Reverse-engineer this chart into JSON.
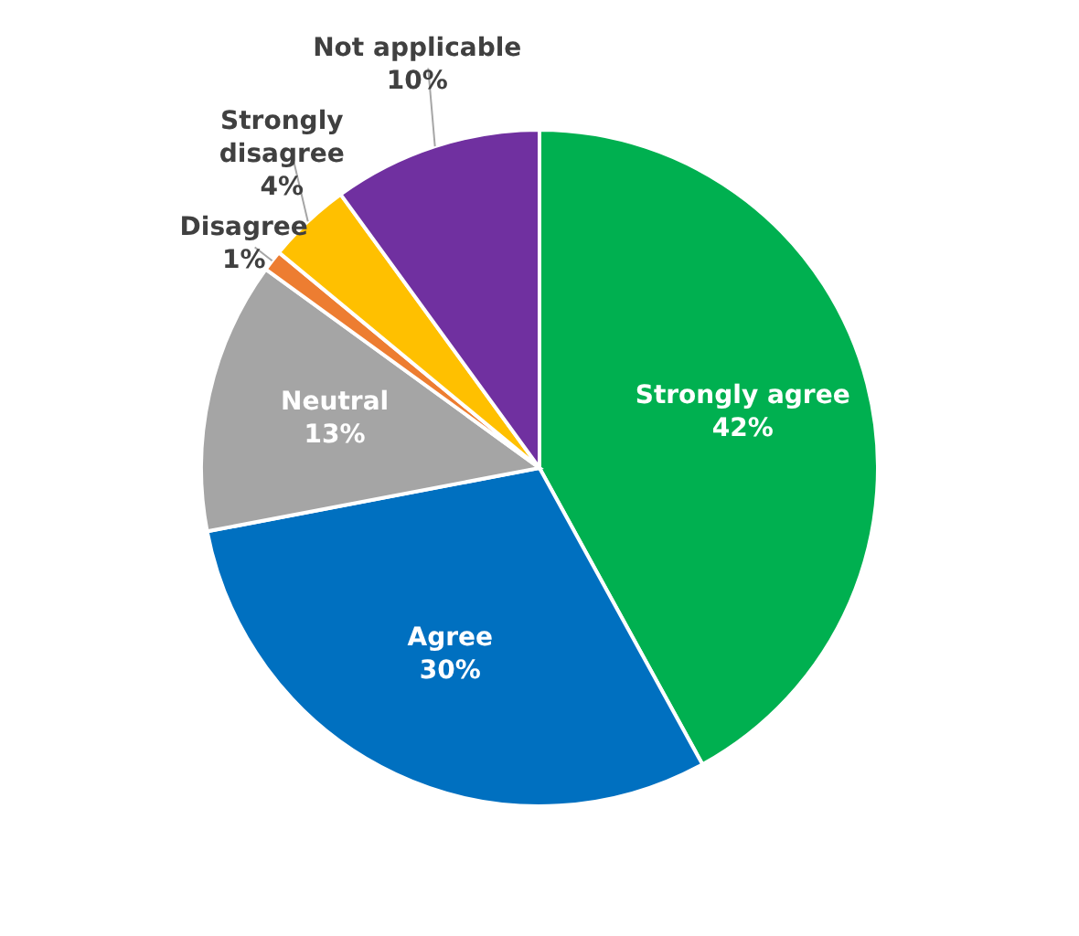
{
  "chart_data": {
    "type": "pie",
    "categories": [
      "Strongly agree",
      "Agree",
      "Neutral",
      "Disagree",
      "Strongly disagree",
      "Not applicable"
    ],
    "values": [
      42,
      30,
      13,
      1,
      4,
      10
    ],
    "value_labels": [
      "42%",
      "30%",
      "13%",
      "1%",
      "4%",
      "10%"
    ],
    "colors": [
      "#00b050",
      "#0070c0",
      "#a5a5a5",
      "#ed7d31",
      "#ffc000",
      "#7030a0"
    ]
  }
}
